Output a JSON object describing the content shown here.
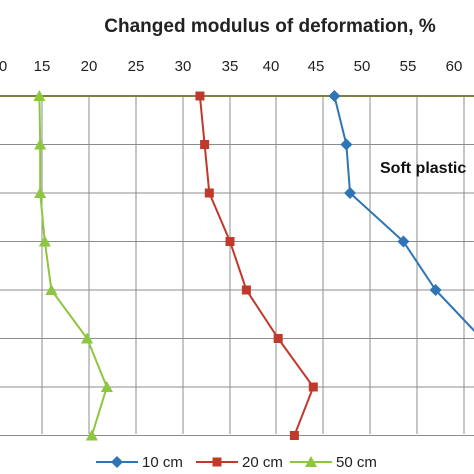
{
  "chart_data": {
    "type": "line",
    "title": "Changed modulus of deformation, %",
    "xlabel": "",
    "ylabel": "",
    "xlim": [
      0,
      65
    ],
    "x_ticks": [
      "0",
      "15",
      "20",
      "25",
      "30",
      "35",
      "40",
      "45",
      "50",
      "55",
      "60"
    ],
    "axis_position": "top",
    "grid": true,
    "legend_position": "bottom",
    "annotation": "Soft plastic",
    "depth_levels": [
      0,
      1,
      2,
      3,
      4,
      5,
      6,
      7
    ],
    "series": [
      {
        "name": "10 cm",
        "color": "#2e75b6",
        "marker": "diamond",
        "values": [
          47.0,
          48.3,
          48.7,
          54.5,
          58.0,
          63.0,
          null,
          null
        ]
      },
      {
        "name": "20 cm",
        "color": "#c0392b",
        "marker": "square",
        "values": [
          31.8,
          32.3,
          32.8,
          35.0,
          37.0,
          40.8,
          44.7,
          42.6
        ]
      },
      {
        "name": "50 cm",
        "color": "#8dc63f",
        "marker": "triangle",
        "values": [
          14.0,
          14.3,
          14.3,
          15.3,
          16.0,
          19.8,
          21.9,
          20.3
        ]
      }
    ]
  }
}
